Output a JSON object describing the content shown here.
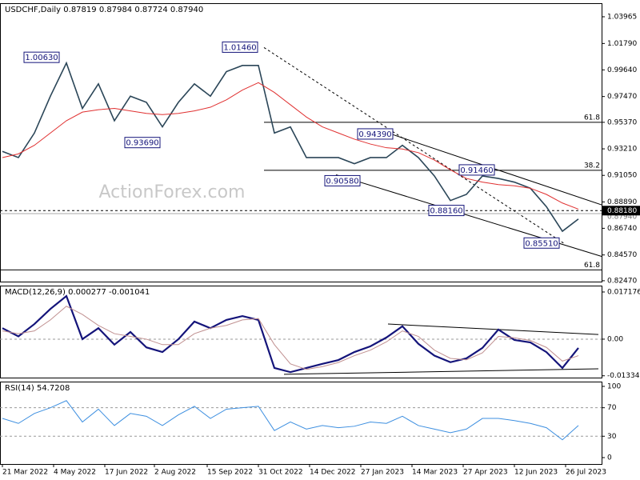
{
  "chart_data": [
    {
      "type": "line",
      "title": "USDCHF,Daily  0.87819 0.87984 0.87724 0.87940",
      "watermark": "ActionForex.com",
      "x": [
        0,
        10,
        20,
        30,
        40,
        50,
        60,
        70,
        80,
        90,
        100,
        110,
        120,
        130,
        140,
        150,
        160,
        170,
        180,
        190,
        200,
        210,
        220,
        230,
        240,
        250,
        260,
        270,
        280,
        290,
        300,
        310,
        320,
        330,
        340,
        350,
        360
      ],
      "xlim": [
        -1.5,
        374.5
      ],
      "ylim": [
        0.824,
        1.0507
      ],
      "yticks": [
        1.03965,
        {
          "value": 1.0179,
          "label": "1.01790"
        },
        {
          "value": 0.9964,
          "label": "0.99640"
        },
        {
          "value": 0.9747,
          "label": "0.97470"
        },
        {
          "value": 0.9537,
          "label": "0.95370"
        },
        {
          "value": 0.9321,
          "label": "0.93210"
        },
        {
          "value": 0.9105,
          "label": "0.91050"
        },
        {
          "value": 0.8889,
          "label": "0.88890"
        },
        {
          "value": 0.8674,
          "label": "0.86740"
        },
        {
          "value": 0.8457,
          "label": "0.84570"
        },
        {
          "value": 0.8247,
          "label": "0.82470"
        }
      ],
      "series": [
        {
          "color": "#2b4658",
          "width": 1.6,
          "values": [
            0.93,
            0.925,
            0.945,
            0.975,
            1.002,
            0.965,
            0.985,
            0.955,
            0.975,
            0.97,
            0.95,
            0.97,
            0.985,
            0.975,
            0.995,
            1.0,
            1.0,
            0.945,
            0.95,
            0.925,
            0.925,
            0.925,
            0.92,
            0.925,
            0.925,
            0.935,
            0.925,
            0.91,
            0.89,
            0.895,
            0.91,
            0.908,
            0.905,
            0.9,
            0.885,
            0.865,
            0.875
          ]
        },
        {
          "color": "#e03030",
          "width": 1,
          "values": [
            0.925,
            0.928,
            0.935,
            0.945,
            0.955,
            0.962,
            0.964,
            0.965,
            0.963,
            0.961,
            0.96,
            0.961,
            0.963,
            0.966,
            0.972,
            0.98,
            0.986,
            0.978,
            0.968,
            0.958,
            0.95,
            0.945,
            0.94,
            0.936,
            0.933,
            0.932,
            0.929,
            0.923,
            0.915,
            0.908,
            0.905,
            0.903,
            0.902,
            0.9,
            0.895,
            0.888,
            0.883
          ]
        }
      ],
      "levels": [
        {
          "value": 0.9537,
          "label": "61.8",
          "from": 163.5
        },
        {
          "value": 0.9146,
          "label": "38.2",
          "from": 163.5
        },
        {
          "value": 0.8335,
          "label": "61.8",
          "from": -1.5
        }
      ],
      "trendlines": [
        {
          "x": [
            163.5,
            351
          ],
          "y": [
            1.0146,
            0.8551
          ],
          "dash": true
        },
        {
          "x": [
            243.5,
            374.5
          ],
          "y": [
            0.9439,
            0.8865
          ],
          "dash": false
        },
        {
          "x": [
            208.5,
            374.5
          ],
          "y": [
            0.911,
            0.8445
          ],
          "dash": false
        }
      ],
      "annotations": [
        {
          "x": 24.5,
          "value": 1.0063,
          "label": "1.00630"
        },
        {
          "x": 87.5,
          "value": 0.9369,
          "label": "0.93690"
        },
        {
          "x": 148.5,
          "value": 1.0146,
          "label": "1.01460"
        },
        {
          "x": 233,
          "value": 0.9439,
          "label": "0.94390"
        },
        {
          "x": 212.5,
          "value": 0.9058,
          "label": "0.90580"
        },
        {
          "x": 277.5,
          "value": 0.8816,
          "label": "0.88160"
        },
        {
          "x": 296.5,
          "value": 0.9146,
          "label": "0.91460"
        },
        {
          "x": 337,
          "value": 0.8551,
          "label": "0.85510"
        }
      ],
      "markers": [
        {
          "value": 0.8794,
          "label": "0.87940"
        },
        {
          "value": 0.8818,
          "label": "0.88180"
        }
      ]
    },
    {
      "type": "line",
      "title": "MACD(12,26,9) 0.000277 -0.001041",
      "ylim": [
        -0.014,
        0.0195
      ],
      "yticks": [
        0.017176,
        {
          "value": 0,
          "label": "0.00"
        },
        -0.01334
      ],
      "hlines": [
        0
      ],
      "series": [
        {
          "color": "#14147a",
          "width": 2.2,
          "values": [
            0.004,
            0.001,
            0.0055,
            0.011,
            0.0157,
            0,
            0.004,
            -0.002,
            0.0026,
            -0.003,
            -0.0047,
            0,
            0.0064,
            0.004,
            0.007,
            0.0084,
            0.007,
            -0.0105,
            -0.012,
            -0.0105,
            -0.009,
            -0.0076,
            -0.0047,
            -0.0026,
            0.0006,
            0.0047,
            -0.0017,
            -0.006,
            -0.0084,
            -0.007,
            -0.0032,
            0.0035,
            -0.0003,
            -0.0012,
            -0.0047,
            -0.0105,
            -0.0032
          ]
        },
        {
          "color": "#c09090",
          "width": 1,
          "values": [
            0.003,
            0.002,
            0.003,
            0.007,
            0.012,
            0.009,
            0.005,
            0.002,
            0.001,
            0,
            -0.002,
            -0.002,
            0.002,
            0.004,
            0.005,
            0.007,
            0.0075,
            -0.002,
            -0.009,
            -0.011,
            -0.01,
            -0.0085,
            -0.006,
            -0.004,
            -0.001,
            0.003,
            0.001,
            -0.004,
            -0.007,
            -0.0075,
            -0.005,
            0.001,
            0.0005,
            -0.0005,
            -0.003,
            -0.008,
            -0.006
          ]
        }
      ],
      "trendlines": [
        {
          "x": [
            241,
            372.5
          ],
          "y": [
            0.0055,
            0.0017
          ],
          "dash": false
        },
        {
          "x": [
            176,
            372.5
          ],
          "y": [
            -0.0128,
            -0.0108
          ],
          "dash": false
        }
      ]
    },
    {
      "type": "line",
      "title": "RSI(14) 54.7208",
      "ylim": [
        -9,
        106.7
      ],
      "yticks": [
        100,
        70,
        30,
        0
      ],
      "hlines": [
        70,
        30
      ],
      "series": [
        {
          "color": "#3d8fe0",
          "width": 1,
          "values": [
            55,
            48,
            62,
            70,
            80,
            50,
            68,
            45,
            62,
            58,
            45,
            60,
            72,
            55,
            68,
            70,
            72,
            38,
            50,
            40,
            45,
            42,
            44,
            50,
            48,
            58,
            45,
            40,
            35,
            40,
            55,
            55,
            52,
            48,
            42,
            25,
            45
          ]
        }
      ],
      "xticks": [
        {
          "value": 0,
          "label": "21 Mar 2022"
        },
        {
          "value": 32,
          "label": "4 May 2022"
        },
        {
          "value": 64,
          "label": "17 Jun 2022"
        },
        {
          "value": 95,
          "label": "2 Aug 2022"
        },
        {
          "value": 128,
          "label": "15 Sep 2022"
        },
        {
          "value": 160,
          "label": "31 Oct 2022"
        },
        {
          "value": 192,
          "label": "14 Dec 2022"
        },
        {
          "value": 224,
          "label": "27 Jan 2023"
        },
        {
          "value": 256,
          "label": "14 Mar 2023"
        },
        {
          "value": 288,
          "label": "27 Apr 2023"
        },
        {
          "value": 320,
          "label": "12 Jun 2023"
        },
        {
          "value": 352,
          "label": "26 Jul 2023"
        }
      ]
    }
  ]
}
